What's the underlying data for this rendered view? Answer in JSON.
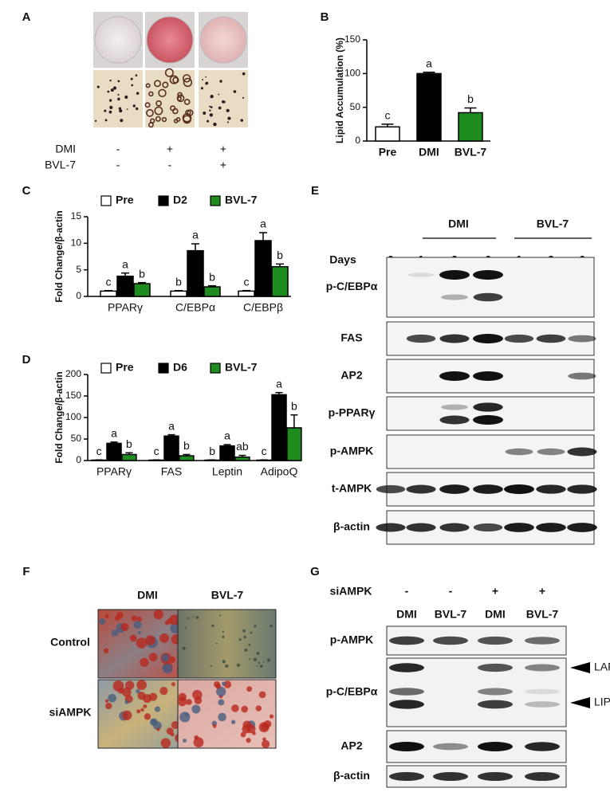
{
  "panel_labels": [
    "A",
    "B",
    "C",
    "D",
    "E",
    "F",
    "G"
  ],
  "panel_a": {
    "rows": [
      {
        "name": "DMI",
        "marks": [
          "-",
          "+",
          "+"
        ]
      },
      {
        "name": "BVL-7",
        "marks": [
          "-",
          "-",
          "+"
        ]
      }
    ]
  },
  "chart_data": [
    {
      "type": "bar",
      "ylabel": "Lipid Accumulation (%)",
      "categories": [
        "Pre",
        "DMI",
        "BVL-7"
      ],
      "values": [
        21,
        100,
        42
      ],
      "errors": [
        4,
        2,
        7
      ],
      "annotations": [
        "c",
        "a",
        "b"
      ],
      "colors": [
        "#ffffff",
        "#000000",
        "#1e8c1e"
      ],
      "ylim": [
        0,
        150
      ],
      "yticks": [
        0,
        50,
        100,
        150
      ]
    },
    {
      "type": "bar",
      "ylabel": "Fold Change/β-actin",
      "categories": [
        "PPARγ",
        "C/EBPα",
        "C/EBPβ"
      ],
      "series": [
        {
          "name": "Pre",
          "color": "#ffffff",
          "values": [
            1,
            1,
            1
          ],
          "errors": [
            0.1,
            0.1,
            0.1
          ],
          "annotations": [
            "c",
            "b",
            "c"
          ]
        },
        {
          "name": "D2",
          "color": "#000000",
          "values": [
            3.8,
            8.6,
            10.5
          ],
          "errors": [
            0.6,
            1.3,
            1.5
          ],
          "annotations": [
            "a",
            "a",
            "a"
          ]
        },
        {
          "name": "BVL-7",
          "color": "#1e8c1e",
          "values": [
            2.4,
            1.8,
            5.6
          ],
          "errors": [
            0.2,
            0.2,
            0.5
          ],
          "annotations": [
            "b",
            "b",
            "b"
          ]
        }
      ],
      "ylim": [
        0,
        15
      ],
      "yticks": [
        0,
        5,
        10,
        15
      ]
    },
    {
      "type": "bar",
      "ylabel": "Fold Change/β-actin",
      "categories": [
        "PPARγ",
        "FAS",
        "Leptin",
        "AdipoQ"
      ],
      "series": [
        {
          "name": "Pre",
          "color": "#ffffff",
          "values": [
            1,
            1,
            1,
            1
          ],
          "errors": [
            0.5,
            0.5,
            0.5,
            0.5
          ],
          "annotations": [
            "c",
            "c",
            "b",
            "c"
          ]
        },
        {
          "name": "D6",
          "color": "#000000",
          "values": [
            40,
            57,
            34,
            153
          ],
          "errors": [
            3,
            3,
            3,
            5
          ],
          "annotations": [
            "a",
            "a",
            "a",
            "a"
          ]
        },
        {
          "name": "BVL-7",
          "color": "#1e8c1e",
          "values": [
            14,
            11,
            8,
            76
          ],
          "errors": [
            4,
            3,
            4,
            30
          ],
          "annotations": [
            "b",
            "b",
            "ab",
            "b"
          ]
        }
      ],
      "ylim": [
        0,
        200
      ],
      "yticks": [
        0,
        50,
        100,
        150,
        200
      ]
    }
  ],
  "blot_e": {
    "groups": [
      "DMI",
      "BVL-7"
    ],
    "days_label": "Days",
    "days": [
      0,
      1,
      2,
      6,
      1,
      2,
      6
    ],
    "rows": [
      "p-C/EBPα",
      "FAS",
      "AP2",
      "p-PPARγ",
      "p-AMPK",
      "t-AMPK",
      "β-actin"
    ]
  },
  "figure_f": {
    "columns": [
      "DMI",
      "BVL-7"
    ],
    "rows": [
      "Control",
      "siAMPK"
    ]
  },
  "blot_g": {
    "condition": "siAMPK",
    "marks": [
      "-",
      "-",
      "+",
      "+"
    ],
    "lanes": [
      "DMI",
      "BVL-7",
      "DMI",
      "BVL-7"
    ],
    "rows": [
      "p-AMPK",
      "p-C/EBPα",
      "AP2",
      "β-actin"
    ],
    "arrows": [
      "LAP",
      "LIP"
    ]
  }
}
